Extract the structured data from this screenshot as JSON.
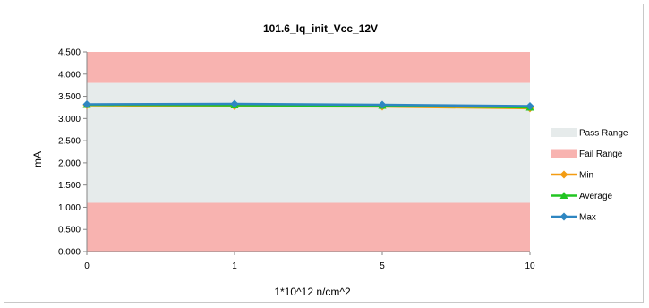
{
  "chart_data": {
    "type": "line",
    "title": "101.6_Iq_init_Vcc_12V",
    "xlabel": "1*10^12 n/cm^2",
    "ylabel": "mA",
    "categories": [
      "0",
      "1",
      "5",
      "10"
    ],
    "ylim": [
      0,
      4.5
    ],
    "yticks": [
      "0.000",
      "0.500",
      "1.000",
      "1.500",
      "2.000",
      "2.500",
      "3.000",
      "3.500",
      "4.000",
      "4.500"
    ],
    "pass_range": [
      1.1,
      3.8
    ],
    "fail_ranges": [
      [
        0,
        1.1
      ],
      [
        3.8,
        4.5
      ]
    ],
    "series": [
      {
        "name": "Min",
        "values": [
          3.3,
          3.28,
          3.27,
          3.23
        ],
        "color": "#f39c12",
        "marker": "diamond"
      },
      {
        "name": "Average",
        "values": [
          3.31,
          3.3,
          3.29,
          3.25
        ],
        "color": "#22c522",
        "marker": "triangle"
      },
      {
        "name": "Max",
        "values": [
          3.32,
          3.33,
          3.31,
          3.28
        ],
        "color": "#2e86c1",
        "marker": "diamond"
      }
    ],
    "legend": [
      {
        "name": "Pass Range",
        "kind": "band",
        "color": "#e6ebeb"
      },
      {
        "name": "Fail Range",
        "kind": "band",
        "color": "#f8b3b0"
      },
      {
        "name": "Min",
        "kind": "line",
        "color": "#f39c12",
        "marker": "diamond"
      },
      {
        "name": "Average",
        "kind": "line",
        "color": "#22c522",
        "marker": "triangle"
      },
      {
        "name": "Max",
        "kind": "line",
        "color": "#2e86c1",
        "marker": "diamond"
      }
    ],
    "legend_position": "right",
    "grid": false
  }
}
